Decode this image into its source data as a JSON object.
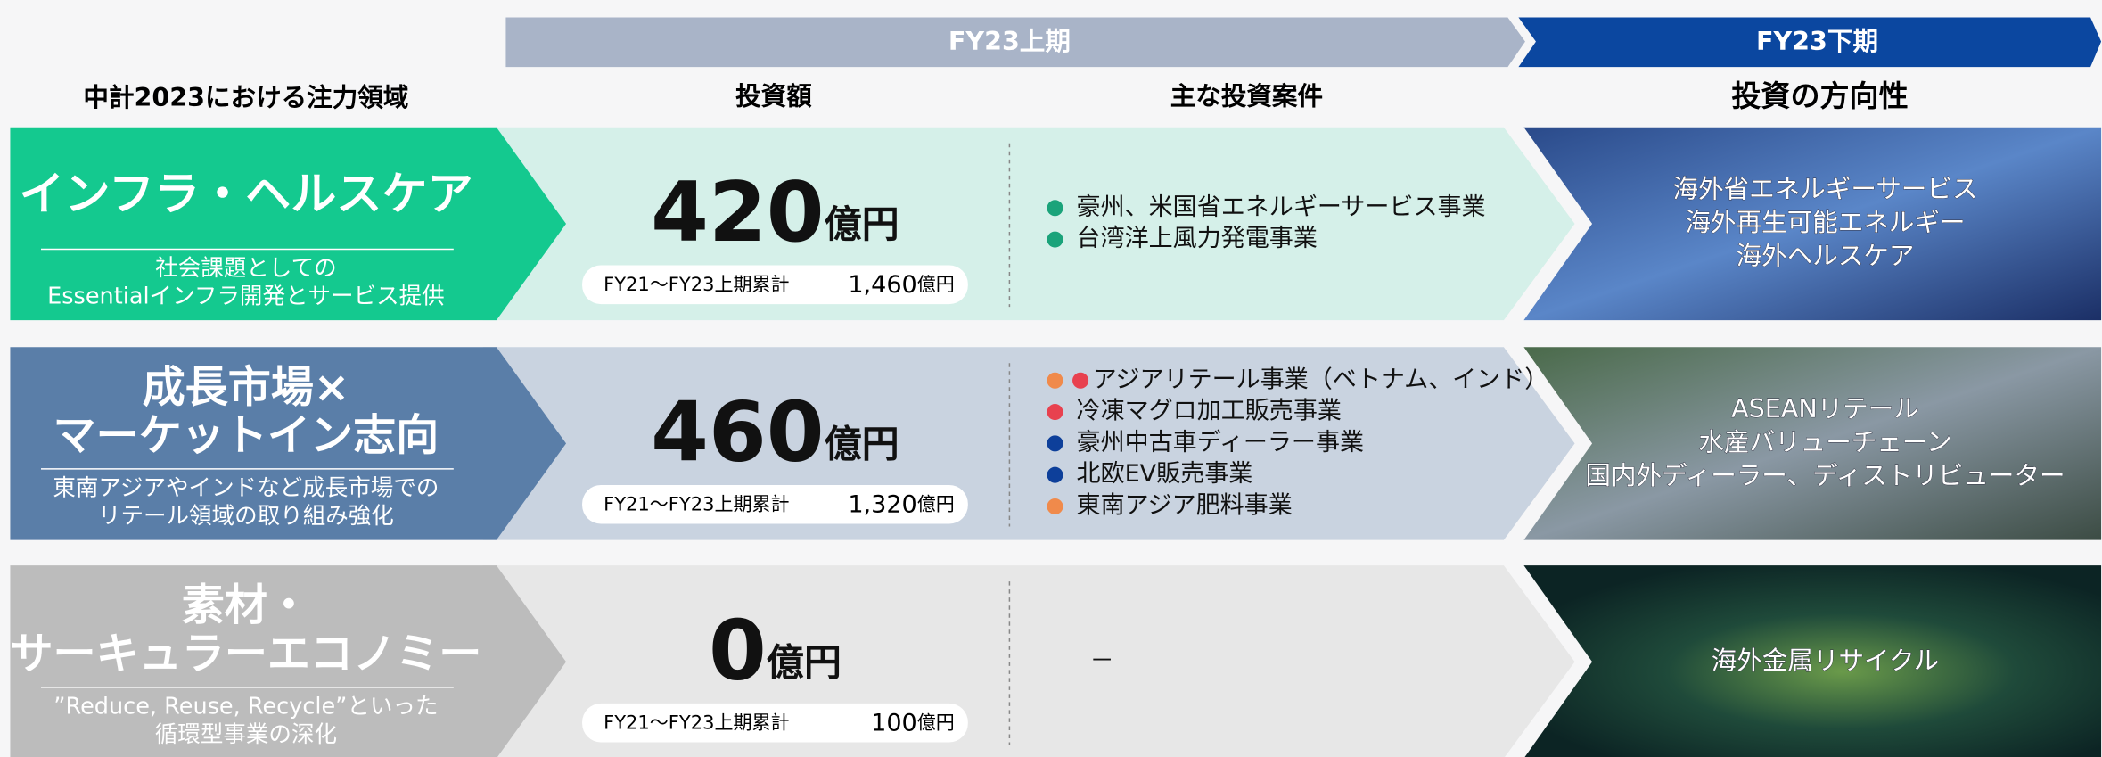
{
  "header": {
    "phases": [
      "FY23上期",
      "FY23下期"
    ],
    "columns": [
      "中計2023における注力領域",
      "投資額",
      "主な投資案件",
      "投資の方向性"
    ]
  },
  "rows": [
    {
      "title": [
        "インフラ・ヘルスケア"
      ],
      "subtitle": [
        "社会課題としての",
        "Essentialインフラ開発とサービス提供"
      ],
      "color": "#14c98f",
      "bg": "#d5f0e9",
      "amount": "420",
      "unit": "億円",
      "cumulative_label": "FY21～FY23上期累計",
      "cumulative_amount": "1,460",
      "cumulative_unit": "億円",
      "projects": [
        {
          "text": "豪州、米国省エネルギーサービス事業",
          "bullets": [
            "#1aa37a"
          ]
        },
        {
          "text": "台湾洋上風力発電事業",
          "bullets": [
            "#1aa37a"
          ]
        }
      ],
      "directions": [
        "海外省エネルギーサービス",
        "海外再生可能エネルギー",
        "海外ヘルスケア"
      ]
    },
    {
      "title": [
        "成長市場×",
        "マーケットイン志向"
      ],
      "subtitle": [
        "東南アジアやインドなど成長市場での",
        "リテール領域の取り組み強化"
      ],
      "color": "#5a7ea8",
      "bg": "#c9d3e0",
      "amount": "460",
      "unit": "億円",
      "cumulative_label": "FY21～FY23上期累計",
      "cumulative_amount": "1,320",
      "cumulative_unit": "億円",
      "projects": [
        {
          "text": "アジアリテール事業（ベトナム、インド）",
          "bullets": [
            "#f08a4b",
            "#e8414f"
          ]
        },
        {
          "text": "冷凍マグロ加工販売事業",
          "bullets": [
            "#e8414f"
          ]
        },
        {
          "text": "豪州中古車ディーラー事業",
          "bullets": [
            "#0d3f9a"
          ]
        },
        {
          "text": "北欧EV販売事業",
          "bullets": [
            "#0d3f9a"
          ]
        },
        {
          "text": "東南アジア肥料事業",
          "bullets": [
            "#f08a4b"
          ]
        }
      ],
      "directions": [
        "ASEANリテール",
        "水産バリューチェーン",
        "国内外ディーラー、ディストリビューター"
      ]
    },
    {
      "title": [
        "素材・",
        "サーキュラーエコノミー"
      ],
      "subtitle": [
        "”Reduce, Reuse, Recycle”といった",
        "循環型事業の深化"
      ],
      "color": "#bcbcbc",
      "bg": "#e7e7e7",
      "amount": "0",
      "unit": "億円",
      "cumulative_label": "FY21～FY23上期累計",
      "cumulative_amount": "100",
      "cumulative_unit": "億円",
      "projects": [
        {
          "text": "－",
          "bullets": []
        }
      ],
      "directions": [
        "海外金属リサイクル"
      ]
    }
  ]
}
